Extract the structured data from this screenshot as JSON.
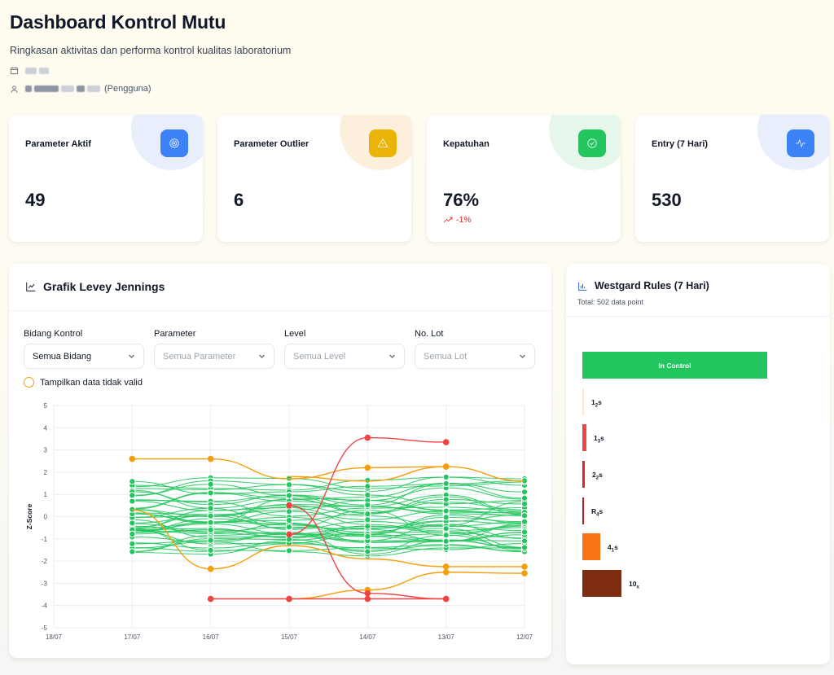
{
  "header": {
    "title": "Dashboard Kontrol Mutu",
    "subtitle": "Ringkasan aktivitas dan performa kontrol kualitas laboratorium",
    "user_role": "(Pengguna)"
  },
  "stats": [
    {
      "label": "Parameter Aktif",
      "value": "49",
      "icon": "target-icon",
      "color": "#3b82f6",
      "blob": "#e8eefc"
    },
    {
      "label": "Parameter Outlier",
      "value": "6",
      "icon": "warning-triangle-icon",
      "color": "#eab308",
      "blob": "#fcf0dc"
    },
    {
      "label": "Kepatuhan",
      "value": "76%",
      "trend": "-1%",
      "icon": "check-circle-icon",
      "color": "#22c55e",
      "blob": "#e6f6ea"
    },
    {
      "label": "Entry (7 Hari)",
      "value": "530",
      "icon": "activity-icon",
      "color": "#3b82f6",
      "blob": "#e8eefc"
    }
  ],
  "levey_jennings": {
    "title": "Grafik Levey Jennings",
    "filters": [
      {
        "label": "Bidang Kontrol",
        "value": "Semua Bidang",
        "dim": false
      },
      {
        "label": "Parameter",
        "value": "Semua Parameter",
        "dim": true
      },
      {
        "label": "Level",
        "value": "Semua Level",
        "dim": true
      },
      {
        "label": "No. Lot",
        "value": "Semua Lot",
        "dim": true
      }
    ],
    "toggle_label": "Tampilkan data tidak valid"
  },
  "chart_data": {
    "type": "line",
    "ylabel": "Z-Score",
    "xlabel": "",
    "x": [
      "18/07",
      "17/07",
      "16/07",
      "15/07",
      "14/07",
      "13/07",
      "12/07"
    ],
    "ylim": [
      -5,
      5
    ],
    "yticks": [
      5,
      4,
      3,
      2,
      1,
      0,
      -1,
      -2,
      -3,
      -4,
      -5
    ],
    "grid": true,
    "colors": {
      "in_control": "#22c55e",
      "warning": "#f59e0b",
      "reject": "#ef4444"
    },
    "highlight_series": [
      {
        "status": "warning",
        "points": [
          [
            1,
            2.6
          ],
          [
            2,
            2.6
          ],
          [
            3,
            1.7
          ],
          [
            4,
            2.2
          ],
          [
            5,
            2.25
          ]
        ]
      },
      {
        "status": "warning",
        "points": [
          [
            1,
            0.3
          ],
          [
            2,
            -2.35
          ],
          [
            3,
            -1.3
          ],
          [
            4,
            -1.9
          ],
          [
            5,
            -2.25
          ],
          [
            6,
            -2.25
          ]
        ]
      },
      {
        "status": "warning",
        "points": [
          [
            3,
            -3.7
          ],
          [
            4,
            -3.3
          ],
          [
            5,
            -2.5
          ],
          [
            6,
            -2.55
          ]
        ]
      },
      {
        "status": "warning",
        "points": [
          [
            3,
            1.8
          ],
          [
            4,
            1.6
          ],
          [
            5,
            2.25
          ],
          [
            6,
            1.6
          ]
        ]
      },
      {
        "status": "reject",
        "points": [
          [
            3,
            -0.8
          ],
          [
            4,
            3.55
          ],
          [
            5,
            3.35
          ]
        ]
      },
      {
        "status": "reject",
        "points": [
          [
            3,
            0.5
          ],
          [
            4,
            -3.45
          ],
          [
            5,
            -3.7
          ]
        ]
      },
      {
        "status": "reject",
        "points": [
          [
            2,
            -3.7
          ],
          [
            3,
            -3.7
          ],
          [
            4,
            -3.7
          ],
          [
            5,
            -3.7
          ]
        ]
      }
    ],
    "in_control_lines": 44
  },
  "westgard": {
    "title": "Westgard Rules (7 Hari)",
    "total": "Total: 502 data point",
    "in_control_label": "In Control",
    "rules": [
      {
        "label": "1",
        "sub": "2",
        "suffix": "s",
        "color": "#fde9c4",
        "width": 2,
        "height": 33
      },
      {
        "label": "1",
        "sub": "3",
        "suffix": "s",
        "color": "#ef4444",
        "width": 5,
        "height": 33
      },
      {
        "label": "2",
        "sub": "2",
        "suffix": "s",
        "color": "#dc2626",
        "width": 3,
        "height": 33
      },
      {
        "label": "R",
        "sub": "4",
        "suffix": "s",
        "color": "#b91c1c",
        "width": 2,
        "height": 33
      },
      {
        "label": "4",
        "sub": "1",
        "suffix": "s",
        "color": "#f97316",
        "width": 22,
        "height": 33
      },
      {
        "label": "10",
        "sub": "x",
        "suffix": "",
        "color": "#7c2d12",
        "width": 48,
        "height": 33
      }
    ]
  }
}
